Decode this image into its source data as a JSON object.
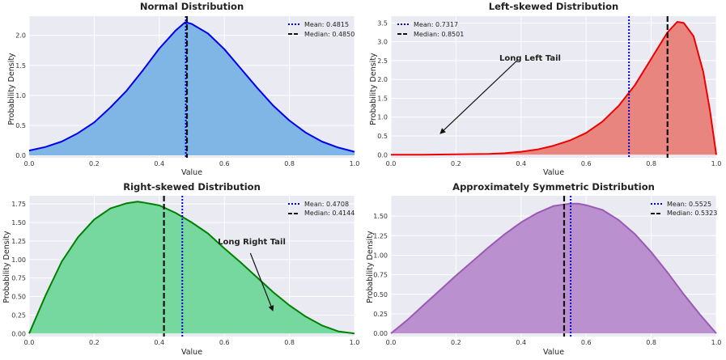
{
  "chart_data": [
    {
      "type": "area",
      "title": "Normal Distribution",
      "xlabel": "Value",
      "ylabel": "Probability Density",
      "xlim": [
        0,
        1
      ],
      "ylim": [
        -0.04,
        2.32
      ],
      "xticks": [
        "0.0",
        "0.2",
        "0.4",
        "0.6",
        "0.8",
        "1.0"
      ],
      "yticks": [
        "0.0",
        "0.5",
        "1.0",
        "1.5",
        "2.0"
      ],
      "ytick_values": [
        0,
        0.5,
        1.0,
        1.5,
        2.0
      ],
      "series": [
        {
          "name": "density",
          "x": [
            0,
            0.05,
            0.1,
            0.15,
            0.2,
            0.25,
            0.3,
            0.35,
            0.4,
            0.45,
            0.48,
            0.5,
            0.55,
            0.6,
            0.65,
            0.7,
            0.75,
            0.8,
            0.85,
            0.9,
            0.95,
            1.0
          ],
          "y": [
            0.08,
            0.14,
            0.23,
            0.37,
            0.55,
            0.8,
            1.08,
            1.42,
            1.78,
            2.08,
            2.22,
            2.19,
            2.03,
            1.77,
            1.45,
            1.13,
            0.83,
            0.58,
            0.38,
            0.23,
            0.13,
            0.06
          ]
        }
      ],
      "fill_color": "#7fb6e6",
      "line_color": "#0000ee",
      "mean": 0.4815,
      "median": 0.485,
      "legend": [
        "Mean: 0.4815",
        "Median: 0.4850"
      ],
      "legend_position": "top-right",
      "annotation": null
    },
    {
      "type": "area",
      "title": "Left-skewed Distribution",
      "xlabel": "Value",
      "ylabel": "Probability Density",
      "xlim": [
        0,
        1
      ],
      "ylim": [
        -0.08,
        3.68
      ],
      "xticks": [
        "0.0",
        "0.2",
        "0.4",
        "0.6",
        "0.8",
        "1.0"
      ],
      "yticks": [
        "0.0",
        "0.5",
        "1.0",
        "1.5",
        "2.0",
        "2.5",
        "3.0",
        "3.5"
      ],
      "ytick_values": [
        0,
        0.5,
        1.0,
        1.5,
        2.0,
        2.5,
        3.0,
        3.5
      ],
      "series": [
        {
          "name": "density",
          "x": [
            0,
            0.1,
            0.2,
            0.3,
            0.35,
            0.4,
            0.45,
            0.5,
            0.55,
            0.6,
            0.65,
            0.7,
            0.75,
            0.8,
            0.85,
            0.88,
            0.9,
            0.93,
            0.96,
            0.98,
            1.0
          ],
          "y": [
            0,
            0.0,
            0.01,
            0.02,
            0.04,
            0.08,
            0.14,
            0.24,
            0.38,
            0.58,
            0.88,
            1.3,
            1.85,
            2.55,
            3.25,
            3.53,
            3.5,
            3.15,
            2.2,
            1.2,
            0.0
          ]
        }
      ],
      "fill_color": "#e8857e",
      "line_color": "#ee0000",
      "mean": 0.7317,
      "median": 0.8501,
      "legend": [
        "Mean: 0.7317",
        "Median: 0.8501"
      ],
      "legend_position": "top-left",
      "annotation": {
        "text": "Long Left Tail",
        "x": 0.39,
        "y": 2.65,
        "arrow_to_x": 0.15,
        "arrow_to_y": 0.55
      }
    },
    {
      "type": "area",
      "title": "Right-skewed Distribution",
      "xlabel": "Value",
      "ylabel": "Probability Density",
      "xlim": [
        0,
        1
      ],
      "ylim": [
        -0.04,
        1.86
      ],
      "xticks": [
        "0.0",
        "0.2",
        "0.4",
        "0.6",
        "0.8",
        "1.0"
      ],
      "yticks": [
        "0.00",
        "0.25",
        "0.50",
        "0.75",
        "1.00",
        "1.25",
        "1.50",
        "1.75"
      ],
      "ytick_values": [
        0,
        0.25,
        0.5,
        0.75,
        1.0,
        1.25,
        1.5,
        1.75
      ],
      "series": [
        {
          "name": "density",
          "x": [
            0,
            0.05,
            0.1,
            0.15,
            0.2,
            0.25,
            0.3,
            0.333,
            0.35,
            0.4,
            0.45,
            0.5,
            0.55,
            0.6,
            0.65,
            0.7,
            0.75,
            0.8,
            0.85,
            0.9,
            0.95,
            1.0
          ],
          "y": [
            0,
            0.51,
            0.97,
            1.3,
            1.54,
            1.69,
            1.76,
            1.78,
            1.77,
            1.73,
            1.63,
            1.5,
            1.35,
            1.15,
            0.96,
            0.76,
            0.56,
            0.38,
            0.23,
            0.11,
            0.03,
            0
          ]
        }
      ],
      "fill_color": "#77d89f",
      "line_color": "#008000",
      "mean": 0.4708,
      "median": 0.4144,
      "legend": [
        "Mean: 0.4708",
        "Median: 0.4144"
      ],
      "legend_position": "top-right",
      "annotation": {
        "text": "Long Right Tail",
        "x": 0.68,
        "y": 1.15,
        "arrow_to_x": 0.75,
        "arrow_to_y": 0.3
      }
    },
    {
      "type": "area",
      "title": "Approximately Symmetric Distribution",
      "xlabel": "Value",
      "ylabel": "Probability Density",
      "xlim": [
        0,
        1
      ],
      "ylim": [
        -0.04,
        1.76
      ],
      "xticks": [
        "0.0",
        "0.2",
        "0.4",
        "0.6",
        "0.8",
        "1.0"
      ],
      "yticks": [
        "0.00",
        "0.25",
        "0.50",
        "0.75",
        "1.00",
        "1.25",
        "1.50"
      ],
      "ytick_values": [
        0,
        0.25,
        0.5,
        0.75,
        1.0,
        1.25,
        1.5
      ],
      "series": [
        {
          "name": "density",
          "x": [
            0,
            0.05,
            0.1,
            0.15,
            0.2,
            0.25,
            0.3,
            0.35,
            0.4,
            0.45,
            0.5,
            0.55,
            0.575,
            0.6,
            0.65,
            0.7,
            0.75,
            0.8,
            0.85,
            0.9,
            0.95,
            1.0
          ],
          "y": [
            0,
            0.17,
            0.36,
            0.55,
            0.74,
            0.92,
            1.1,
            1.27,
            1.42,
            1.54,
            1.63,
            1.66,
            1.66,
            1.64,
            1.58,
            1.45,
            1.27,
            1.04,
            0.78,
            0.5,
            0.24,
            0
          ]
        }
      ],
      "fill_color": "#bb90cf",
      "line_color": "#9b59b6",
      "mean": 0.5525,
      "median": 0.5323,
      "legend": [
        "Mean: 0.5525",
        "Median: 0.5323"
      ],
      "legend_position": "top-right",
      "annotation": null
    }
  ]
}
